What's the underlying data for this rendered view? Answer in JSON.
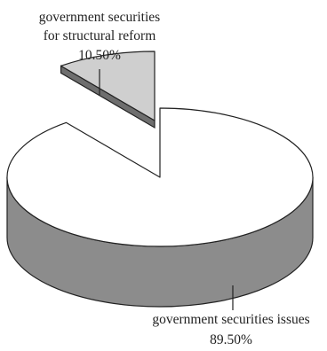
{
  "chart_data": {
    "type": "pie",
    "style": "3d-exploded",
    "slices": [
      {
        "label": "government securities issues",
        "value": 89.5,
        "value_label": "89.50%",
        "color": "#ffffff",
        "side_color": "#8c8c8c"
      },
      {
        "label_lines": [
          "government securities",
          "for structural reform"
        ],
        "value": 10.5,
        "value_label": "10.50%",
        "color": "#cfcfcf",
        "side_color": "#6e6e6e",
        "exploded": true
      }
    ],
    "legend": "none",
    "grid": false
  }
}
